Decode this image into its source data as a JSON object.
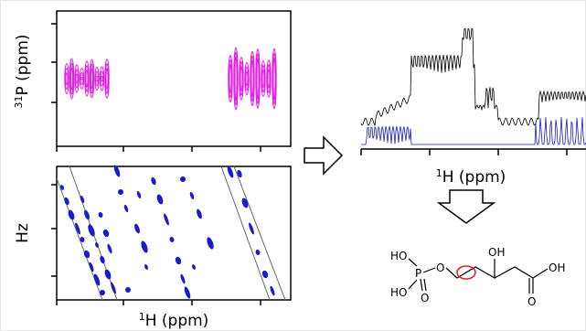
{
  "top_left": {
    "ylabel": {
      "sup": "31",
      "text": "P (ppm)"
    }
  },
  "bottom_left": {
    "ylabel": "Hz",
    "xlabel": {
      "sup": "1",
      "text": "H (ppm)"
    }
  },
  "right": {
    "xlabel": {
      "sup": "1",
      "text": "H (ppm)"
    }
  },
  "molecule": {
    "atoms": [
      "HO",
      "P",
      "HO",
      "O",
      "O",
      "OH",
      "OH",
      "O"
    ]
  }
}
